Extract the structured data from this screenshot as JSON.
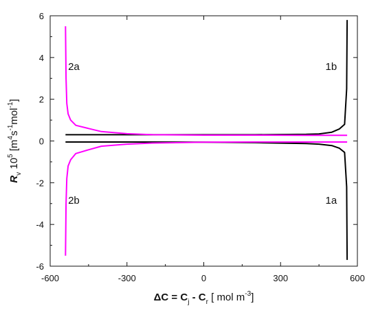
{
  "chart_data": {
    "type": "line",
    "xlabel_parts": [
      "ΔC = C",
      "j",
      " - C",
      "r",
      " [ mol m",
      "-3",
      "]"
    ],
    "ylabel_parts": [
      "R",
      "v",
      " 10",
      "5",
      " [m",
      "4",
      "s",
      "-1",
      "mol",
      "-1",
      "]"
    ],
    "xlim": [
      -600,
      600
    ],
    "ylim": [
      -6,
      6
    ],
    "x_ticks": [
      -600,
      -300,
      0,
      300,
      600
    ],
    "y_ticks": [
      -6,
      -4,
      -2,
      0,
      2,
      4,
      6
    ],
    "x_tick_labels": [
      "-600",
      "-300",
      "0",
      "300",
      "600"
    ],
    "y_tick_labels": [
      "-6",
      "-4",
      "-2",
      "0",
      "2",
      "4",
      "6"
    ],
    "grid": false,
    "legend": "none",
    "series": [
      {
        "color": "#000000",
        "label": "1b",
        "x": [
          -540,
          -400,
          -200,
          0,
          200,
          400,
          450,
          500,
          530,
          550,
          558,
          560
        ],
        "y": [
          0.3,
          0.3,
          0.3,
          0.3,
          0.3,
          0.32,
          0.34,
          0.42,
          0.58,
          0.8,
          2.5,
          5.8
        ]
      },
      {
        "color": "#000000",
        "label": "1a",
        "x": [
          -540,
          -400,
          -200,
          0,
          200,
          400,
          450,
          500,
          530,
          550,
          558,
          560
        ],
        "y": [
          -0.05,
          -0.05,
          -0.05,
          -0.06,
          -0.08,
          -0.12,
          -0.15,
          -0.22,
          -0.35,
          -0.55,
          -2.2,
          -5.7
        ]
      },
      {
        "color": "#ff00ff",
        "label": "2a",
        "x": [
          -540,
          -538,
          -535,
          -530,
          -520,
          -500,
          -450,
          -400,
          -300,
          -200,
          0,
          200,
          400,
          560
        ],
        "y": [
          5.5,
          3.0,
          1.8,
          1.3,
          1.0,
          0.75,
          0.6,
          0.45,
          0.35,
          0.3,
          0.28,
          0.28,
          0.27,
          0.27
        ]
      },
      {
        "color": "#ff00ff",
        "label": "2b",
        "x": [
          -540,
          -538,
          -535,
          -530,
          -520,
          -500,
          -450,
          -400,
          -300,
          -200,
          0,
          200,
          400,
          560
        ],
        "y": [
          -5.5,
          -3.0,
          -1.8,
          -1.2,
          -0.9,
          -0.6,
          -0.42,
          -0.25,
          -0.15,
          -0.1,
          -0.06,
          -0.05,
          -0.05,
          -0.05
        ]
      }
    ],
    "curve_labels": [
      {
        "text": "2a",
        "x": -530,
        "y": 3.4
      },
      {
        "text": "1b",
        "x": 520,
        "y": 3.4
      },
      {
        "text": "2b",
        "x": -530,
        "y": -3.0
      },
      {
        "text": "1a",
        "x": 520,
        "y": -3.0
      }
    ]
  }
}
